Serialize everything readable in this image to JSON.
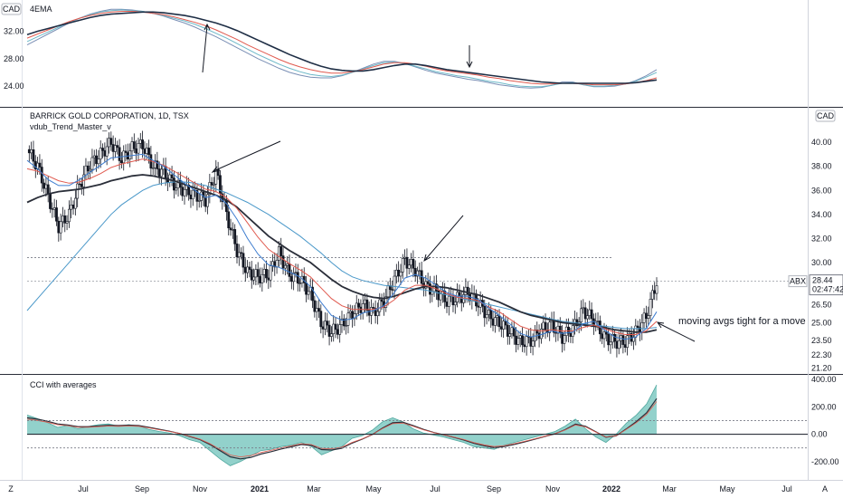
{
  "chart_data": {
    "type": "line",
    "currency": "CAD",
    "x_ticks": [
      "Jul",
      "Sep",
      "Nov",
      "2021",
      "Mar",
      "May",
      "Jul",
      "Sep",
      "Nov",
      "2022",
      "Mar",
      "May",
      "Jul"
    ],
    "bottom_left": "Z",
    "bottom_right": "A",
    "panes": [
      {
        "id": "ema",
        "title": "4EMA",
        "ylim": [
          21.5,
          35.5
        ],
        "y_ticks": [
          "32.00",
          "28.00",
          "24.00"
        ],
        "series": [
          {
            "color": "#1e2e45",
            "values": [
              31.5,
              32.0,
              32.4,
              32.8,
              33.2,
              33.6,
              34.0,
              34.3,
              34.5,
              34.6,
              34.7,
              34.8,
              34.8,
              34.7,
              34.5,
              34.3,
              34.0,
              33.6,
              33.2,
              32.7,
              32.1,
              31.4,
              30.7,
              30.0,
              29.3,
              28.6,
              28.0,
              27.4,
              26.9,
              26.5,
              26.3,
              26.2,
              26.2,
              26.4,
              26.7,
              27.0,
              27.2,
              27.2,
              27.0,
              26.7,
              26.4,
              26.2,
              26.0,
              25.8,
              25.6,
              25.4,
              25.2,
              25.0,
              24.8,
              24.6,
              24.5,
              24.4,
              24.4,
              24.4,
              24.4,
              24.4,
              24.4,
              24.4,
              24.5,
              24.7,
              24.9
            ]
          },
          {
            "color": "#e05a4f",
            "values": [
              31.0,
              31.6,
              32.2,
              32.8,
              33.4,
              33.9,
              34.3,
              34.6,
              34.8,
              34.9,
              34.9,
              34.8,
              34.6,
              34.4,
              34.1,
              33.7,
              33.3,
              32.8,
              32.2,
              31.5,
              30.8,
              30.0,
              29.3,
              28.6,
              27.9,
              27.3,
              26.8,
              26.4,
              26.1,
              25.9,
              25.9,
              26.1,
              26.4,
              26.8,
              27.2,
              27.4,
              27.4,
              27.2,
              26.9,
              26.5,
              26.2,
              26.0,
              25.8,
              25.6,
              25.3,
              25.1,
              24.8,
              24.6,
              24.4,
              24.3,
              24.3,
              24.4,
              24.4,
              24.3,
              24.2,
              24.2,
              24.2,
              24.3,
              24.5,
              24.8,
              25.2
            ]
          },
          {
            "color": "#6cb8c8",
            "values": [
              30.5,
              31.2,
              31.9,
              32.6,
              33.3,
              33.9,
              34.4,
              34.8,
              35.0,
              35.1,
              35.0,
              34.9,
              34.6,
              34.3,
              33.9,
              33.5,
              33.0,
              32.4,
              31.7,
              31.0,
              30.2,
              29.4,
              28.6,
              27.9,
              27.2,
              26.6,
              26.1,
              25.7,
              25.5,
              25.4,
              25.6,
              26.0,
              26.5,
              27.0,
              27.4,
              27.5,
              27.3,
              26.9,
              26.5,
              26.1,
              25.8,
              25.5,
              25.3,
              25.0,
              24.7,
              24.5,
              24.2,
              24.0,
              23.9,
              23.9,
              24.1,
              24.4,
              24.5,
              24.2,
              24.0,
              24.0,
              24.1,
              24.3,
              24.7,
              25.3,
              26.0
            ]
          },
          {
            "color": "#7a8fb5",
            "values": [
              30.0,
              30.8,
              31.6,
              32.4,
              33.2,
              33.9,
              34.5,
              34.9,
              35.2,
              35.2,
              35.1,
              34.9,
              34.6,
              34.2,
              33.7,
              33.2,
              32.6,
              31.9,
              31.2,
              30.4,
              29.6,
              28.8,
              28.0,
              27.3,
              26.6,
              26.0,
              25.6,
              25.3,
              25.2,
              25.2,
              25.5,
              26.0,
              26.6,
              27.2,
              27.6,
              27.6,
              27.3,
              26.8,
              26.3,
              25.9,
              25.6,
              25.3,
              25.0,
              24.8,
              24.5,
              24.2,
              24.0,
              23.8,
              23.7,
              23.8,
              24.1,
              24.6,
              24.6,
              24.2,
              23.9,
              23.9,
              24.0,
              24.3,
              24.8,
              25.5,
              26.4
            ]
          }
        ]
      },
      {
        "id": "price",
        "title": "BARRICK GOLD CORPORATION, 1D, TSX",
        "subtitle": "vdub_Trend_Master_v",
        "ylim": [
          20.8,
          42.8
        ],
        "y_ticks": [
          "40.00",
          "38.00",
          "36.00",
          "34.00",
          "32.00",
          "30.00",
          "28.00",
          "26.50",
          "25.00",
          "23.50",
          "22.30",
          "21.20"
        ],
        "price_values": [
          39.4,
          38.0,
          35.5,
          33.0,
          34.0,
          36.5,
          38.2,
          39.0,
          40.0,
          38.6,
          39.5,
          39.8,
          38.0,
          37.5,
          36.5,
          36.0,
          35.6,
          35.2,
          37.5,
          34.0,
          31.0,
          29.2,
          28.8,
          29.0,
          30.8,
          29.0,
          28.6,
          27.4,
          25.0,
          24.2,
          24.8,
          25.8,
          26.5,
          25.8,
          26.8,
          28.6,
          30.2,
          29.4,
          28.0,
          27.6,
          26.8,
          27.0,
          27.5,
          26.6,
          25.5,
          25.0,
          24.2,
          23.4,
          23.5,
          24.4,
          24.8,
          23.8,
          24.5,
          26.0,
          25.2,
          23.8,
          23.4,
          23.4,
          24.2,
          25.5,
          28.4
        ],
        "ema_fast": [
          38.5,
          37.8,
          36.9,
          36.4,
          36.4,
          36.9,
          37.5,
          38.1,
          38.7,
          38.8,
          38.9,
          39.0,
          38.5,
          38.0,
          37.3,
          36.6,
          36.0,
          35.4,
          35.6,
          34.9,
          33.6,
          32.0,
          30.7,
          29.8,
          29.6,
          29.2,
          28.8,
          28.0,
          26.7,
          25.6,
          25.2,
          25.3,
          25.8,
          26.0,
          26.4,
          27.5,
          28.7,
          29.0,
          28.7,
          28.1,
          27.5,
          27.2,
          27.2,
          26.9,
          26.2,
          25.6,
          24.9,
          24.1,
          23.8,
          24.0,
          24.3,
          24.1,
          24.2,
          24.9,
          25.1,
          24.4,
          23.8,
          23.6,
          23.8,
          24.5,
          25.9
        ],
        "ema_mid": [
          37.8,
          37.6,
          37.2,
          36.8,
          36.6,
          36.7,
          37.0,
          37.4,
          37.9,
          38.2,
          38.4,
          38.6,
          38.4,
          38.1,
          37.6,
          37.1,
          36.6,
          36.1,
          35.9,
          35.4,
          34.5,
          33.3,
          32.1,
          31.1,
          30.5,
          29.9,
          29.4,
          28.8,
          27.9,
          27.0,
          26.4,
          26.1,
          26.1,
          26.1,
          26.3,
          26.9,
          27.7,
          28.1,
          28.1,
          27.8,
          27.4,
          27.1,
          27.0,
          26.8,
          26.3,
          25.9,
          25.3,
          24.7,
          24.4,
          24.3,
          24.4,
          24.3,
          24.3,
          24.6,
          24.8,
          24.5,
          24.2,
          24.0,
          24.0,
          24.3,
          25.1
        ],
        "ma_slow": [
          35.0,
          35.4,
          35.7,
          35.9,
          36.0,
          36.1,
          36.3,
          36.5,
          36.8,
          37.0,
          37.2,
          37.3,
          37.2,
          37.0,
          36.8,
          36.5,
          36.2,
          35.9,
          35.6,
          35.2,
          34.6,
          33.8,
          33.0,
          32.2,
          31.6,
          31.0,
          30.5,
          30.0,
          29.3,
          28.6,
          28.0,
          27.6,
          27.3,
          27.1,
          27.0,
          27.2,
          27.5,
          27.8,
          28.0,
          28.0,
          27.9,
          27.7,
          27.5,
          27.3,
          27.0,
          26.7,
          26.3,
          25.9,
          25.6,
          25.4,
          25.2,
          25.0,
          24.9,
          24.8,
          24.7,
          24.6,
          24.4,
          24.3,
          24.2,
          24.2,
          24.4
        ],
        "ma_long": [
          26.0,
          27.0,
          28.0,
          29.0,
          30.0,
          31.0,
          32.0,
          33.0,
          34.0,
          34.8,
          35.4,
          36.0,
          36.4,
          36.6,
          36.7,
          36.7,
          36.6,
          36.4,
          36.1,
          35.8,
          35.4,
          35.0,
          34.5,
          34.0,
          33.4,
          32.8,
          32.2,
          31.5,
          30.8,
          30.0,
          29.3,
          28.8,
          28.5,
          28.3,
          28.1,
          28.0,
          27.9,
          27.8,
          27.7,
          27.5,
          27.3,
          27.1,
          26.9,
          26.7,
          26.5,
          26.3,
          26.1,
          25.9,
          25.7,
          25.5,
          25.3,
          25.1,
          25.0,
          24.9,
          24.8,
          24.7,
          24.6,
          24.5,
          24.5,
          24.5,
          24.6
        ],
        "horizontal_levels": [
          30.4,
          28.44
        ],
        "last_price_label": "28.44",
        "ticker_label": "ABX",
        "countdown_label": "02:47:42",
        "annotation": "moving avgs tight for a move"
      },
      {
        "id": "cci",
        "title": "CCI with averages",
        "ylim": [
          -320,
          420
        ],
        "y_ticks": [
          "400.00",
          "200.00",
          "0.00",
          "-200.00"
        ],
        "levels": [
          100,
          0,
          -100
        ],
        "cci_values": [
          140,
          115,
          85,
          50,
          65,
          40,
          55,
          70,
          75,
          60,
          70,
          60,
          35,
          20,
          10,
          -10,
          -40,
          -60,
          -120,
          -180,
          -230,
          -200,
          -160,
          -120,
          -110,
          -90,
          -80,
          -60,
          -90,
          -150,
          -120,
          -90,
          -30,
          -10,
          30,
          90,
          120,
          90,
          40,
          10,
          -5,
          -20,
          -40,
          -60,
          -90,
          -100,
          -110,
          -80,
          -60,
          -40,
          -20,
          0,
          20,
          60,
          110,
          40,
          -20,
          -60,
          0,
          80,
          140,
          220,
          360
        ],
        "cci_avg": [
          120,
          110,
          95,
          75,
          68,
          55,
          55,
          60,
          65,
          63,
          66,
          63,
          50,
          36,
          22,
          6,
          -16,
          -38,
          -75,
          -120,
          -165,
          -180,
          -170,
          -145,
          -128,
          -108,
          -92,
          -75,
          -82,
          -112,
          -115,
          -102,
          -65,
          -36,
          -2,
          45,
          84,
          88,
          64,
          36,
          14,
          -4,
          -22,
          -42,
          -66,
          -84,
          -98,
          -90,
          -74,
          -56,
          -36,
          -16,
          4,
          34,
          74,
          58,
          18,
          -22,
          -12,
          38,
          92,
          156,
          260
        ]
      }
    ]
  }
}
